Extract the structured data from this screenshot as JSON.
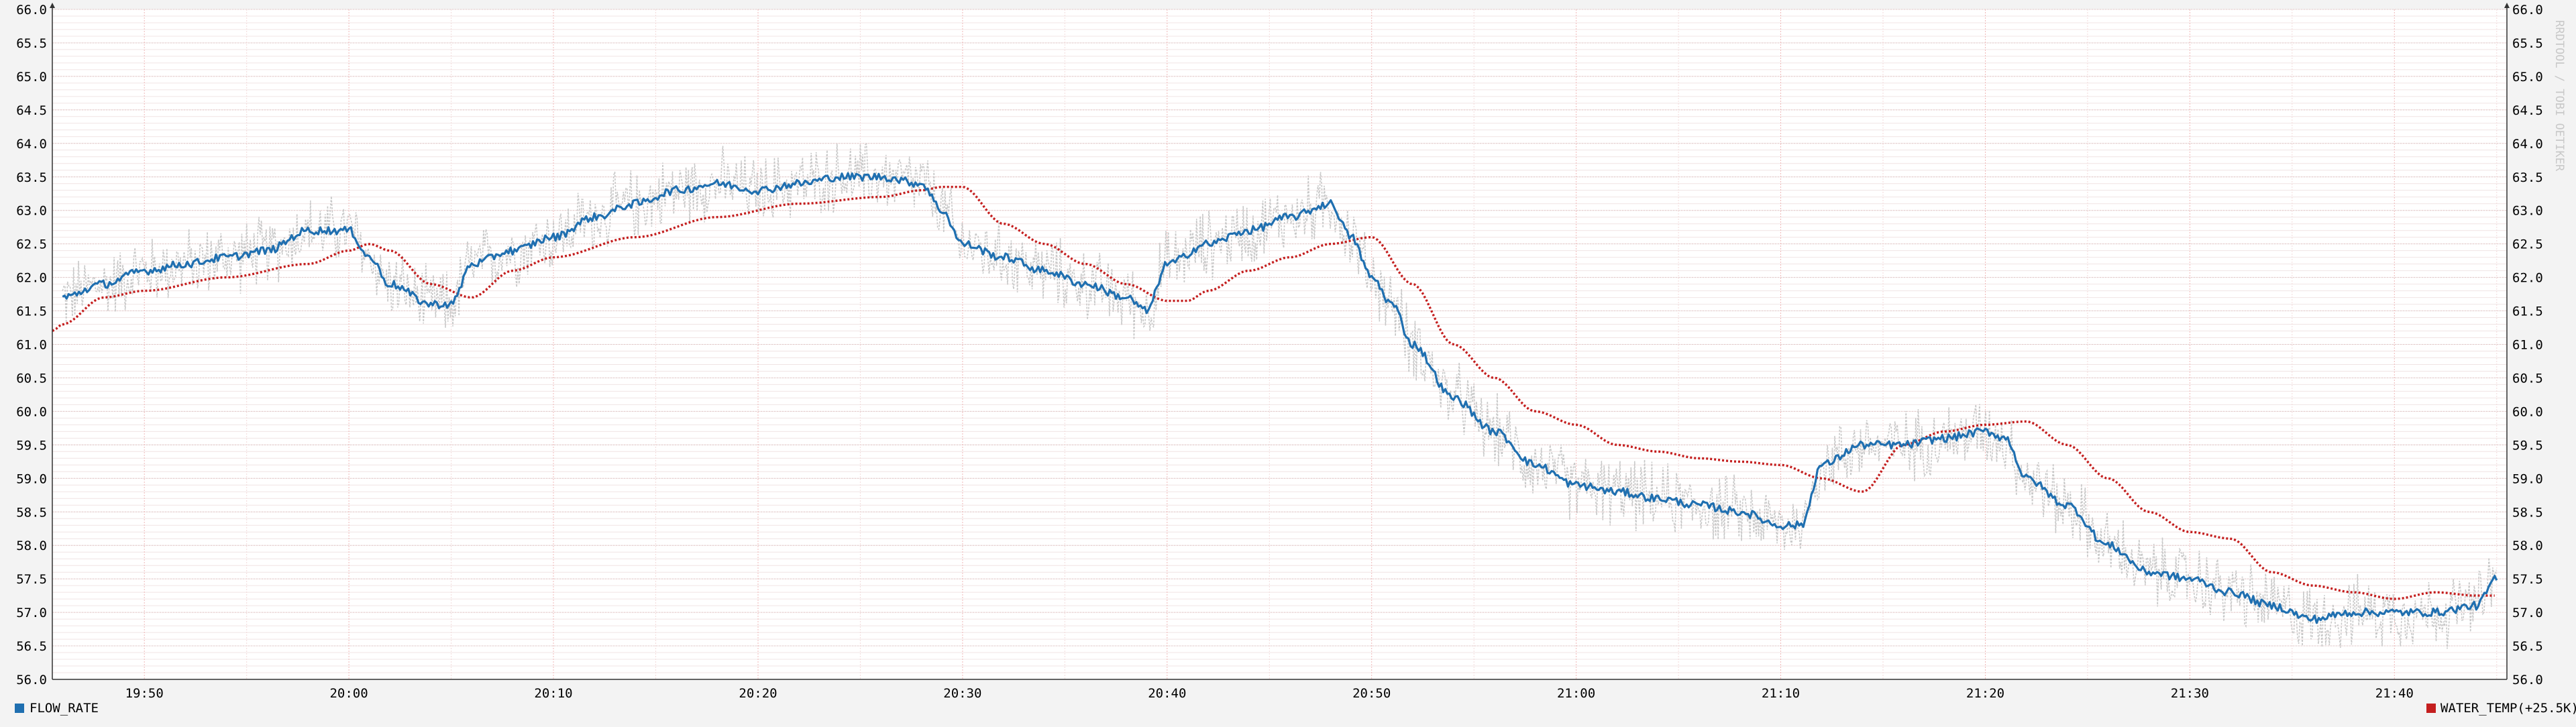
{
  "chart_data": {
    "type": "line",
    "title": "",
    "xlabel": "",
    "ylabel": "",
    "watermark": "RRDTOOL / TOBI OETIKER",
    "ylim": [
      56.0,
      66.0
    ],
    "y_ticks": [
      "56.0",
      "56.5",
      "57.0",
      "57.5",
      "58.0",
      "58.5",
      "59.0",
      "59.5",
      "60.0",
      "60.5",
      "61.0",
      "61.5",
      "62.0",
      "62.5",
      "63.0",
      "63.5",
      "64.0",
      "64.5",
      "65.0",
      "65.5",
      "66.0"
    ],
    "x_range": [
      "19:45:30",
      "21:45:30"
    ],
    "x_ticks": [
      "19:50",
      "20:00",
      "20:10",
      "20:20",
      "20:30",
      "20:40",
      "20:50",
      "21:00",
      "21:10",
      "21:20",
      "21:30",
      "21:40"
    ],
    "grid": true,
    "legend_position": "bottom",
    "series": [
      {
        "name": "FLOW_RATE",
        "legend_label": "FLOW_RATE",
        "color": "#1f6fb0",
        "style": "solid",
        "x": [
          "19:46",
          "19:48",
          "19:50",
          "19:52",
          "19:54",
          "19:56",
          "19:58",
          "20:00",
          "20:01",
          "20:02",
          "20:04",
          "20:05",
          "20:06",
          "20:08",
          "20:10",
          "20:12",
          "20:14",
          "20:16",
          "20:18",
          "20:20",
          "20:22",
          "20:24",
          "20:26",
          "20:28",
          "20:29",
          "20:30",
          "20:32",
          "20:34",
          "20:36",
          "20:38",
          "20:39",
          "20:40",
          "20:42",
          "20:44",
          "20:46",
          "20:48",
          "20:49",
          "20:50",
          "20:51",
          "20:52",
          "20:54",
          "20:56",
          "20:58",
          "21:00",
          "21:02",
          "21:04",
          "21:06",
          "21:08",
          "21:10",
          "21:11",
          "21:12",
          "21:14",
          "21:16",
          "21:18",
          "21:20",
          "21:21",
          "21:22",
          "21:24",
          "21:26",
          "21:28",
          "21:30",
          "21:32",
          "21:34",
          "21:36",
          "21:38",
          "21:40",
          "21:42",
          "21:44",
          "21:45"
        ],
        "values": [
          61.7,
          61.9,
          62.1,
          62.2,
          62.3,
          62.4,
          62.7,
          62.7,
          62.3,
          61.9,
          61.6,
          61.6,
          62.2,
          62.4,
          62.6,
          62.9,
          63.1,
          63.3,
          63.4,
          63.3,
          63.4,
          63.5,
          63.5,
          63.4,
          63.0,
          62.5,
          62.3,
          62.1,
          61.9,
          61.7,
          61.5,
          62.2,
          62.5,
          62.7,
          62.9,
          63.1,
          62.6,
          62.0,
          61.6,
          61.0,
          60.2,
          59.7,
          59.2,
          58.9,
          58.8,
          58.7,
          58.6,
          58.5,
          58.3,
          58.3,
          59.2,
          59.5,
          59.5,
          59.6,
          59.7,
          59.6,
          59.0,
          58.6,
          58.0,
          57.6,
          57.5,
          57.3,
          57.1,
          56.9,
          57.0,
          57.0,
          57.0,
          57.1,
          57.5
        ]
      },
      {
        "name": "WATER_TEMP(+25.5K)",
        "legend_label": "WATER_TEMP(+25.5K)",
        "color": "#c41e1e",
        "style": "dotted",
        "x": [
          "19:45:30",
          "19:46",
          "19:48",
          "19:50",
          "19:54",
          "19:58",
          "20:00",
          "20:01",
          "20:02",
          "20:04",
          "20:06",
          "20:08",
          "20:10",
          "20:14",
          "20:18",
          "20:22",
          "20:26",
          "20:28",
          "20:29",
          "20:30",
          "20:32",
          "20:34",
          "20:36",
          "20:38",
          "20:40",
          "20:41",
          "20:42",
          "20:44",
          "20:46",
          "20:48",
          "20:50",
          "20:52",
          "20:54",
          "20:56",
          "20:58",
          "21:00",
          "21:02",
          "21:04",
          "21:06",
          "21:08",
          "21:10",
          "21:12",
          "21:14",
          "21:16",
          "21:18",
          "21:20",
          "21:22",
          "21:24",
          "21:26",
          "21:28",
          "21:30",
          "21:32",
          "21:34",
          "21:36",
          "21:38",
          "21:40",
          "21:42",
          "21:44",
          "21:45"
        ],
        "values": [
          61.2,
          61.3,
          61.7,
          61.8,
          62.0,
          62.2,
          62.4,
          62.5,
          62.4,
          61.9,
          61.7,
          62.1,
          62.3,
          62.6,
          62.9,
          63.1,
          63.2,
          63.3,
          63.35,
          63.35,
          62.8,
          62.5,
          62.2,
          61.9,
          61.65,
          61.65,
          61.8,
          62.1,
          62.3,
          62.5,
          62.6,
          61.9,
          61.0,
          60.5,
          60.0,
          59.8,
          59.5,
          59.4,
          59.3,
          59.25,
          59.2,
          59.0,
          58.8,
          59.5,
          59.7,
          59.8,
          59.85,
          59.5,
          59.0,
          58.5,
          58.2,
          58.1,
          57.6,
          57.4,
          57.3,
          57.2,
          57.3,
          57.25,
          57.25
        ]
      },
      {
        "name": "raw",
        "color": "#c8c8c8",
        "style": "dashed",
        "noise_amplitude": 0.45,
        "follows_series": "FLOW_RATE"
      }
    ]
  },
  "legend": {
    "flow_label": "FLOW_RATE",
    "temp_label": "WATER_TEMP(+25.5K)",
    "flow_color": "#1f6fb0",
    "temp_color": "#c41e1e"
  }
}
